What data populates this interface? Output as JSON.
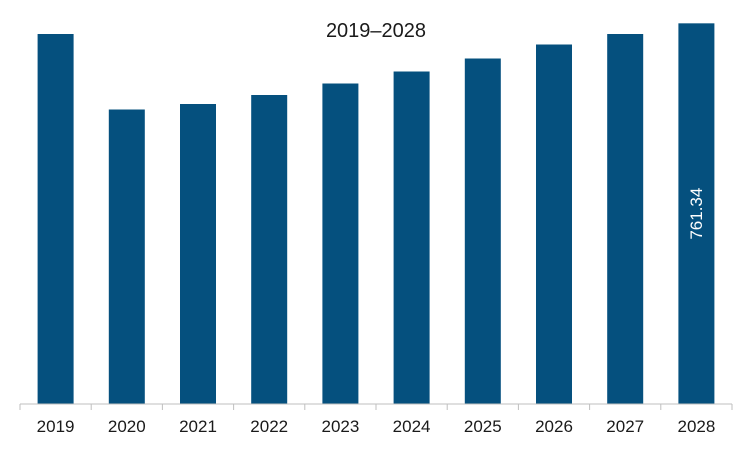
{
  "chart_data": {
    "type": "bar",
    "title": "2019–2028",
    "xlabel": "",
    "ylabel": "",
    "categories": [
      "2019",
      "2020",
      "2021",
      "2022",
      "2023",
      "2024",
      "2025",
      "2026",
      "2027",
      "2028"
    ],
    "values": [
      740,
      589,
      600,
      618,
      641,
      665,
      691,
      719,
      740,
      761.34
    ],
    "data_labels": [
      "",
      "",
      "",
      "",
      "",
      "",
      "",
      "",
      "",
      "761.34"
    ],
    "ylim": [
      0,
      800
    ],
    "grid": false,
    "legend": "none",
    "colors": {
      "bar": "#05507e",
      "axis": "#bfbfbf",
      "text": "#1a1a1a",
      "data_label": "#ffffff"
    }
  }
}
